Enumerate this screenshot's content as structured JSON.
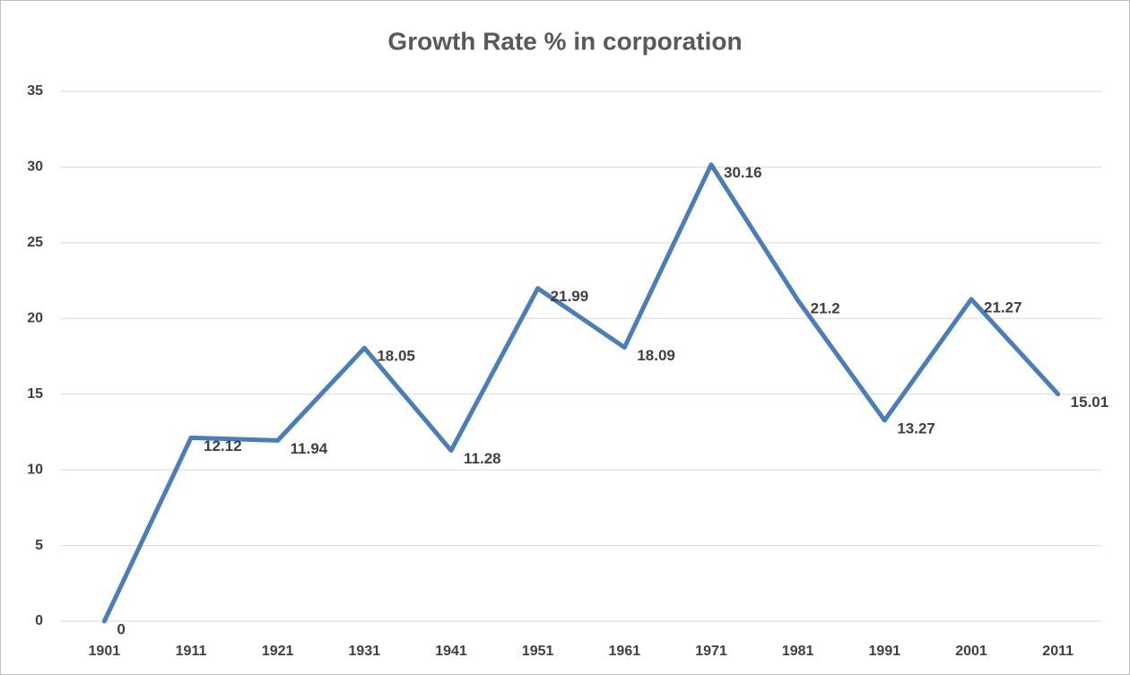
{
  "chart_data": {
    "type": "line",
    "title": "Growth Rate % in corporation",
    "categories": [
      "1901",
      "1911",
      "1921",
      "1931",
      "1941",
      "1951",
      "1961",
      "1971",
      "1981",
      "1991",
      "2001",
      "2011"
    ],
    "series": [
      {
        "name": "Growth Rate %",
        "color": "#4a7ebb",
        "values": [
          0,
          12.12,
          11.94,
          18.05,
          11.28,
          21.99,
          18.09,
          30.16,
          21.2,
          13.27,
          21.27,
          15.01
        ]
      }
    ],
    "ylim": [
      0,
      35
    ],
    "yticks": [
      0,
      5,
      10,
      15,
      20,
      25,
      30,
      35
    ],
    "grid": true,
    "data_labels": true
  }
}
